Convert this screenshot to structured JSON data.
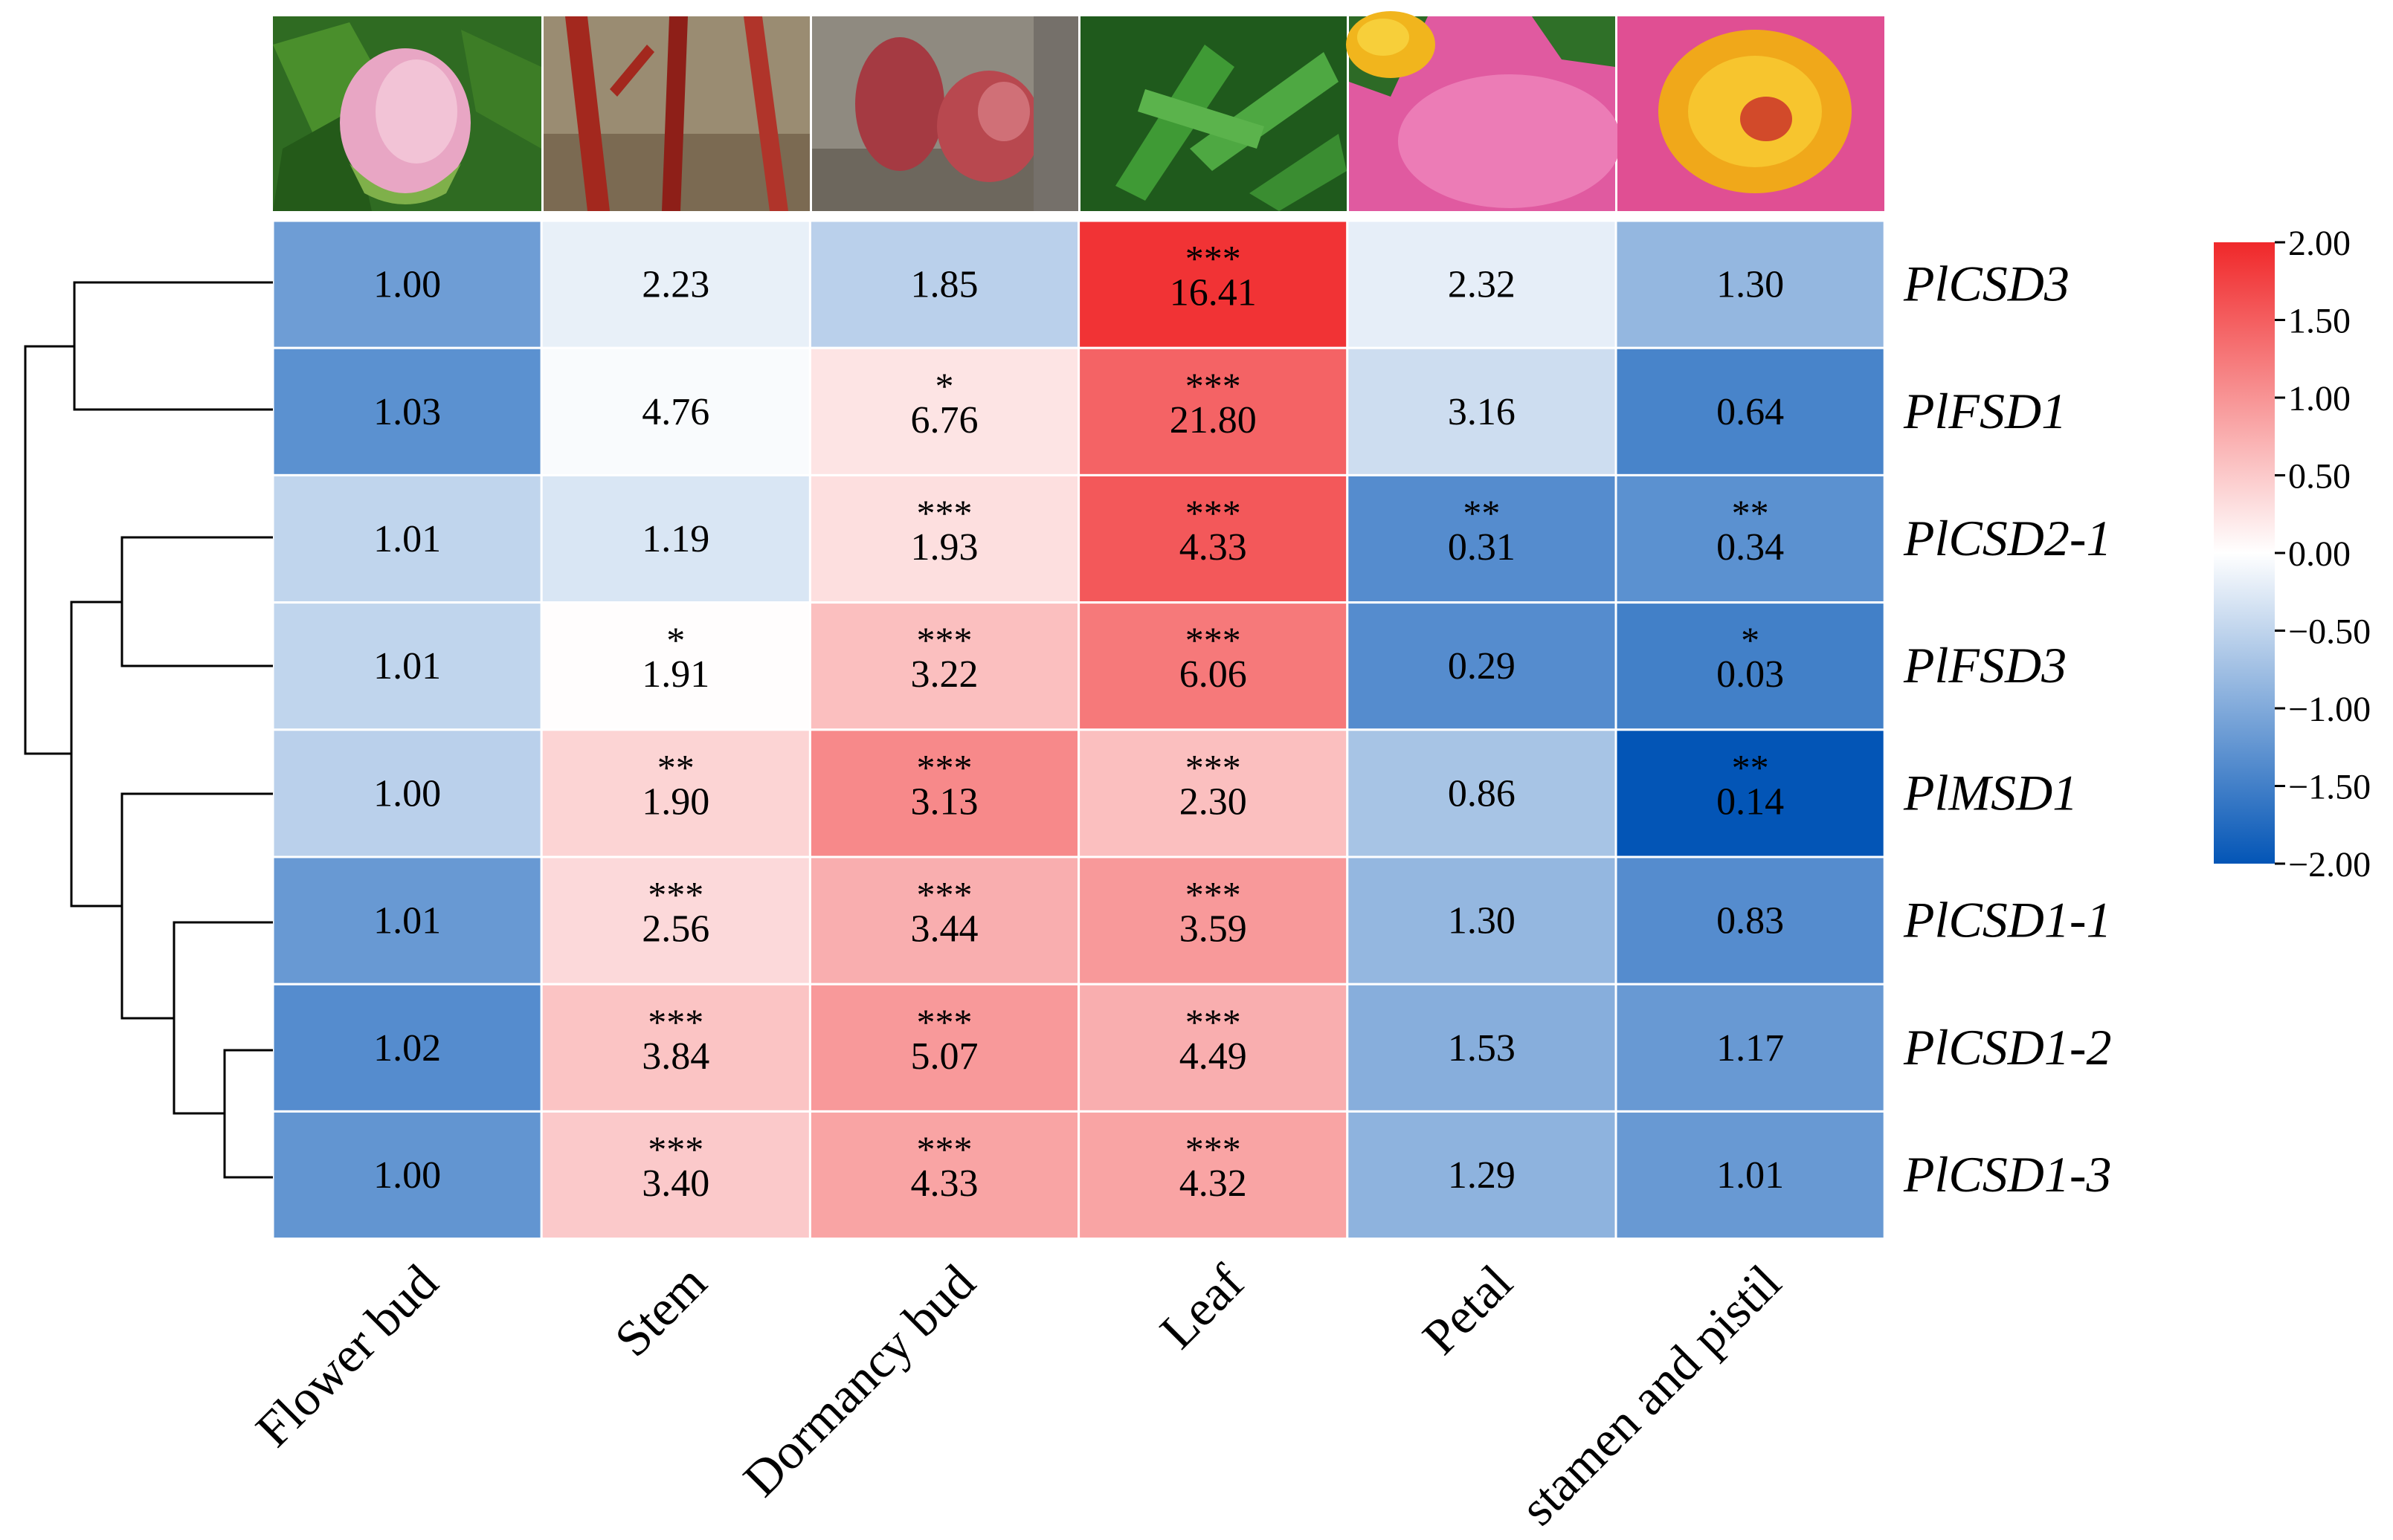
{
  "chart_data": {
    "type": "heatmap",
    "title": "",
    "columns": [
      "Flower bud",
      "Stem",
      "Dormancy bud",
      "Leaf",
      "Petal",
      "stamen and pistil"
    ],
    "column_images": [
      "flower-bud-photo",
      "stem-photo",
      "dormancy-bud-photo",
      "leaf-photo",
      "petal-photo",
      "stamen-and-pistil-photo"
    ],
    "rows": [
      {
        "gene": "PlCSD3",
        "values": [
          1.0,
          2.23,
          1.85,
          16.41,
          2.32,
          1.3
        ],
        "labels": [
          "1.00",
          "2.23",
          "1.85",
          "16.41",
          "2.32",
          "1.30"
        ],
        "sig": [
          "",
          "",
          "",
          "***",
          "",
          ""
        ],
        "scaled": [
          -1.15,
          -0.18,
          -0.55,
          1.9,
          -0.2,
          -0.85
        ]
      },
      {
        "gene": "PlFSD1",
        "values": [
          1.03,
          4.76,
          6.76,
          21.8,
          3.16,
          0.64
        ],
        "labels": [
          "1.03",
          "4.76",
          "6.76",
          "21.80",
          "3.16",
          "0.64"
        ],
        "sig": [
          "",
          "",
          "*",
          "***",
          "",
          ""
        ],
        "scaled": [
          -1.3,
          -0.05,
          0.25,
          1.45,
          -0.4,
          -1.45
        ]
      },
      {
        "gene": "PlCSD2-1",
        "values": [
          1.01,
          1.19,
          1.93,
          4.33,
          0.31,
          0.34
        ],
        "labels": [
          "1.01",
          "1.19",
          "1.93",
          "4.33",
          "0.31",
          "0.34"
        ],
        "sig": [
          "",
          "",
          "***",
          "***",
          "**",
          "**"
        ],
        "scaled": [
          -0.5,
          -0.3,
          0.3,
          1.55,
          -1.35,
          -1.3
        ]
      },
      {
        "gene": "PlFSD3",
        "values": [
          1.01,
          1.91,
          3.22,
          6.06,
          0.29,
          0.03
        ],
        "labels": [
          "1.01",
          "1.91",
          "3.22",
          "6.06",
          "0.29",
          "0.03"
        ],
        "sig": [
          "",
          "*",
          "***",
          "***",
          "",
          "*"
        ],
        "scaled": [
          -0.5,
          0.02,
          0.6,
          1.25,
          -1.35,
          -1.5
        ]
      },
      {
        "gene": "PlMSD1",
        "values": [
          1.0,
          1.9,
          3.13,
          2.3,
          0.86,
          0.14
        ],
        "labels": [
          "1.00",
          "1.90",
          "3.13",
          "2.30",
          "0.86",
          "0.14"
        ],
        "sig": [
          "",
          "**",
          "***",
          "***",
          "",
          "**"
        ],
        "scaled": [
          -0.55,
          0.4,
          1.1,
          0.6,
          -0.7,
          -2.0
        ]
      },
      {
        "gene": "PlCSD1-1",
        "values": [
          1.01,
          2.56,
          3.44,
          3.59,
          1.3,
          0.83
        ],
        "labels": [
          "1.01",
          "2.56",
          "3.44",
          "3.59",
          "1.30",
          "0.83"
        ],
        "sig": [
          "",
          "***",
          "***",
          "***",
          "",
          ""
        ],
        "scaled": [
          -1.2,
          0.35,
          0.75,
          0.95,
          -0.85,
          -1.35
        ]
      },
      {
        "gene": "PlCSD1-2",
        "values": [
          1.02,
          3.84,
          5.07,
          4.49,
          1.53,
          1.17
        ],
        "labels": [
          "1.02",
          "3.84",
          "5.07",
          "4.49",
          "1.53",
          "1.17"
        ],
        "sig": [
          "",
          "***",
          "***",
          "***",
          "",
          ""
        ],
        "scaled": [
          -1.35,
          0.55,
          0.95,
          0.75,
          -0.95,
          -1.2
        ]
      },
      {
        "gene": "PlCSD1-3",
        "values": [
          1.0,
          3.4,
          4.33,
          4.32,
          1.29,
          1.01
        ],
        "labels": [
          "1.00",
          "3.40",
          "4.33",
          "4.32",
          "1.29",
          "1.01"
        ],
        "sig": [
          "",
          "***",
          "***",
          "***",
          "",
          ""
        ],
        "scaled": [
          -1.25,
          0.5,
          0.85,
          0.85,
          -0.9,
          -1.2
        ]
      }
    ],
    "colorbar": {
      "range": [
        -2.0,
        2.0
      ],
      "ticks": [
        "2.00",
        "1.50",
        "1.00",
        "0.50",
        "0.00",
        "−0.50",
        "−1.00",
        "−1.50",
        "−2.00"
      ],
      "tick_values": [
        2.0,
        1.5,
        1.0,
        0.5,
        0.0,
        -0.5,
        -1.0,
        -1.5,
        -2.0
      ],
      "colors": {
        "high": "#f0282a",
        "mid": "#ffffff",
        "low": "#0355b6"
      },
      "placement": "right"
    },
    "dendrogram": {
      "placement": "left",
      "tree": [
        [
          [
            0,
            1
          ],
          [
            [
              2,
              3
            ],
            [
              4,
              [
                5,
                [
                  6,
                  7
                ]
              ]
            ]
          ]
        ]
      ]
    }
  }
}
